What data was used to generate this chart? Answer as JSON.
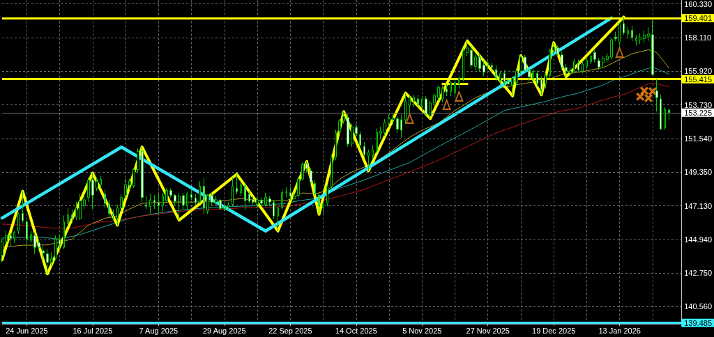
{
  "chart_data": {
    "type": "candlestick",
    "color": "#00c800",
    "categories": [
      null,
      null,
      null,
      null,
      null,
      null,
      "24 Jun 2025",
      null,
      null,
      null,
      null,
      null,
      null,
      null,
      null,
      null,
      null,
      null,
      null,
      null,
      null,
      null,
      "16 Jul 2025",
      null,
      null,
      null,
      null,
      null,
      null,
      null,
      null,
      null,
      null,
      null,
      null,
      null,
      null,
      null,
      "7 Aug 2025",
      null,
      null,
      null,
      null,
      null,
      null,
      null,
      null,
      null,
      null,
      null,
      null,
      null,
      null,
      null,
      "29 Aug 2025",
      null,
      null,
      null,
      null,
      null,
      null,
      null,
      null,
      null,
      null,
      null,
      null,
      null,
      null,
      null,
      "22 Sep 2025",
      null,
      null,
      null,
      null,
      null,
      null,
      null,
      null,
      null,
      null,
      null,
      null,
      null,
      null,
      null,
      "14 Oct 2025",
      null,
      null,
      null,
      null,
      null,
      null,
      null,
      null,
      null,
      null,
      null,
      null,
      null,
      null,
      null,
      "5 Nov 2025",
      null,
      null,
      null,
      null,
      null,
      null,
      null,
      null,
      null,
      null,
      null,
      null,
      null,
      null,
      null,
      "27 Nov 2025",
      null,
      null,
      null,
      null,
      null,
      null,
      null,
      null,
      null,
      null,
      null,
      null,
      null,
      null,
      null,
      "19 Dec 2025",
      null,
      null,
      null,
      null,
      null,
      null,
      null,
      null,
      null,
      null,
      null,
      null,
      null,
      null,
      null,
      "13 Jan 2026",
      null,
      null,
      null,
      null,
      null,
      null,
      null,
      null,
      null,
      null,
      null,
      null
    ],
    "ohlc": [
      [
        143.9,
        145.0,
        143.45,
        144.8
      ],
      [
        144.8,
        145.5,
        144.6,
        145.2
      ],
      [
        145.2,
        145.4,
        144.5,
        145.0
      ],
      [
        145.0,
        145.5,
        144.7,
        145.4
      ],
      [
        145.5,
        146.7,
        145.3,
        146.6
      ],
      [
        146.65,
        148.09,
        146.0,
        146.17
      ],
      [
        146.09,
        146.2,
        144.5,
        144.96
      ],
      [
        144.88,
        145.5,
        144.7,
        145.26
      ],
      [
        145.18,
        145.4,
        144.0,
        144.42
      ],
      [
        144.72,
        144.9,
        144.2,
        144.42
      ],
      [
        144.2,
        144.5,
        143.6,
        144.05
      ],
      [
        144.0,
        144.3,
        142.69,
        143.44
      ],
      [
        143.44,
        144.1,
        143.2,
        143.67
      ],
      [
        143.74,
        145.2,
        143.6,
        144.96
      ],
      [
        144.9,
        145.3,
        144.3,
        144.6
      ],
      [
        144.42,
        146.5,
        144.3,
        146.09
      ],
      [
        146.0,
        147.0,
        145.8,
        146.55
      ],
      [
        146.55,
        146.9,
        146.0,
        146.32
      ],
      [
        146.4,
        147.4,
        146.2,
        147.0
      ],
      [
        146.3,
        147.9,
        146.2,
        147.45
      ],
      [
        147.15,
        147.8,
        146.9,
        147.53
      ],
      [
        147.68,
        149.0,
        147.4,
        148.82
      ],
      [
        148.82,
        149.27,
        146.93,
        147.83
      ],
      [
        148.29,
        149.0,
        148.1,
        148.74
      ],
      [
        148.5,
        149.1,
        148.3,
        148.86
      ],
      [
        147.9,
        148.2,
        147.0,
        147.3
      ],
      [
        147.23,
        147.5,
        146.4,
        146.62
      ],
      [
        146.62,
        146.9,
        146.2,
        146.47
      ],
      [
        146.32,
        147.2,
        145.87,
        147.0
      ],
      [
        147.0,
        147.9,
        146.8,
        147.68
      ],
      [
        147.83,
        148.9,
        147.6,
        148.52
      ],
      [
        148.5,
        148.9,
        148.2,
        148.74
      ],
      [
        148.44,
        149.6,
        148.3,
        149.5
      ],
      [
        149.5,
        150.9,
        149.3,
        150.7
      ],
      [
        150.71,
        150.98,
        147.4,
        147.68
      ],
      [
        147.2,
        147.8,
        146.9,
        147.1
      ],
      [
        147.08,
        147.91,
        146.62,
        147.53
      ],
      [
        147.5,
        147.83,
        146.93,
        147.35
      ],
      [
        147.35,
        147.91,
        146.7,
        147.15
      ],
      [
        147.15,
        147.99,
        146.77,
        147.76
      ],
      [
        147.46,
        148.3,
        147.38,
        148.14
      ],
      [
        148.14,
        148.29,
        147.68,
        147.83
      ],
      [
        147.83,
        147.91,
        147.2,
        147.43
      ],
      [
        147.4,
        147.99,
        146.2,
        147.76
      ],
      [
        147.8,
        147.99,
        146.93,
        147.2
      ],
      [
        147.15,
        148.06,
        146.85,
        147.91
      ],
      [
        147.88,
        148.2,
        147.5,
        147.68
      ],
      [
        147.64,
        147.91,
        147.2,
        147.35
      ],
      [
        147.38,
        148.74,
        147.3,
        148.41
      ],
      [
        148.41,
        148.97,
        146.62,
        147.0
      ],
      [
        146.8,
        147.9,
        146.6,
        147.83
      ],
      [
        147.83,
        148.0,
        147.2,
        147.38
      ],
      [
        147.38,
        147.76,
        147.15,
        147.53
      ],
      [
        147.5,
        147.6,
        146.85,
        146.96
      ],
      [
        147.05,
        147.3,
        146.8,
        146.96
      ],
      [
        147.05,
        147.38,
        146.85,
        147.2
      ],
      [
        147.23,
        148.97,
        147.1,
        148.41
      ],
      [
        148.29,
        149.2,
        147.9,
        148.06
      ],
      [
        147.99,
        148.74,
        147.8,
        148.52
      ],
      [
        148.44,
        148.52,
        146.85,
        147.46
      ],
      [
        147.9,
        148.1,
        147.3,
        147.43
      ],
      [
        147.53,
        147.76,
        147.2,
        147.38
      ],
      [
        147.23,
        147.68,
        147.0,
        147.53
      ],
      [
        147.5,
        147.68,
        147.1,
        147.3
      ],
      [
        147.23,
        147.99,
        147.1,
        147.68
      ],
      [
        147.6,
        147.76,
        147.1,
        147.38
      ],
      [
        147.38,
        147.53,
        146.3,
        146.47
      ],
      [
        146.47,
        147.1,
        145.49,
        147.0
      ],
      [
        147.0,
        148.2,
        146.9,
        148.02
      ],
      [
        148.0,
        148.35,
        147.7,
        148.05
      ],
      [
        148.0,
        148.35,
        147.5,
        147.76
      ],
      [
        147.6,
        148.0,
        147.4,
        147.76
      ],
      [
        147.83,
        149.05,
        147.68,
        148.89
      ],
      [
        148.89,
        149.96,
        148.8,
        149.83
      ],
      [
        149.9,
        150.03,
        149.3,
        149.57
      ],
      [
        149.42,
        149.6,
        148.5,
        148.67
      ],
      [
        148.6,
        148.8,
        147.8,
        147.91
      ],
      [
        147.83,
        148.0,
        146.58,
        147.15
      ],
      [
        147.0,
        147.4,
        146.6,
        147.26
      ],
      [
        147.3,
        148.5,
        147.1,
        148.4
      ],
      [
        148.4,
        150.5,
        148.2,
        150.3
      ],
      [
        150.3,
        152.1,
        150.1,
        151.9
      ],
      [
        152.0,
        152.8,
        151.8,
        152.68
      ],
      [
        152.68,
        153.29,
        152.5,
        152.98
      ],
      [
        152.9,
        153.1,
        151.0,
        151.17
      ],
      [
        151.2,
        152.5,
        151.0,
        152.3
      ],
      [
        152.26,
        152.5,
        151.6,
        151.85
      ],
      [
        151.8,
        152.0,
        150.9,
        151.09
      ],
      [
        151.02,
        151.3,
        150.3,
        150.48
      ],
      [
        150.4,
        150.8,
        149.42,
        150.63
      ],
      [
        150.4,
        151.1,
        150.2,
        150.78
      ],
      [
        150.74,
        152.2,
        150.6,
        151.92
      ],
      [
        151.85,
        152.3,
        151.5,
        152.0
      ],
      [
        151.92,
        152.8,
        151.7,
        152.6
      ],
      [
        152.53,
        153.1,
        152.3,
        152.83
      ],
      [
        152.76,
        153.2,
        152.4,
        152.86
      ],
      [
        152.83,
        153.0,
        151.9,
        152.15
      ],
      [
        152.76,
        153.1,
        151.6,
        152.07
      ],
      [
        152.76,
        154.5,
        152.5,
        153.97
      ],
      [
        153.7,
        154.3,
        153.2,
        154.2
      ],
      [
        153.97,
        154.4,
        153.6,
        154.23
      ],
      [
        154.12,
        154.4,
        153.5,
        153.74
      ],
      [
        153.59,
        154.3,
        153.3,
        154.12
      ],
      [
        154.12,
        154.3,
        153.0,
        153.13
      ],
      [
        153.0,
        154.0,
        152.83,
        153.85
      ],
      [
        153.85,
        154.5,
        153.6,
        154.35
      ],
      [
        154.2,
        155.0,
        154.0,
        154.88
      ],
      [
        154.12,
        155.0,
        153.9,
        154.8
      ],
      [
        154.77,
        155.1,
        154.3,
        154.57
      ],
      [
        154.6,
        155.3,
        154.3,
        155.18
      ],
      [
        154.5,
        155.3,
        154.2,
        155.18
      ],
      [
        155.1,
        155.6,
        154.8,
        155.48
      ],
      [
        155.48,
        157.4,
        155.3,
        157.23
      ],
      [
        157.15,
        157.91,
        156.9,
        157.45
      ],
      [
        157.3,
        157.6,
        156.1,
        156.32
      ],
      [
        156.24,
        157.0,
        156.0,
        156.85
      ],
      [
        156.85,
        157.1,
        155.9,
        156.09
      ],
      [
        156.32,
        156.6,
        155.6,
        155.86
      ],
      [
        156.47,
        156.7,
        156.0,
        156.32
      ],
      [
        156.32,
        156.5,
        155.9,
        156.17
      ],
      [
        156.04,
        156.3,
        155.3,
        155.48
      ],
      [
        155.33,
        155.9,
        155.0,
        155.79
      ],
      [
        155.79,
        156.0,
        155.0,
        155.26
      ],
      [
        155.26,
        155.5,
        154.8,
        155.1
      ],
      [
        155.03,
        155.6,
        154.32,
        155.48
      ],
      [
        155.18,
        156.1,
        155.0,
        155.94
      ],
      [
        155.94,
        156.95,
        155.7,
        156.85
      ],
      [
        156.85,
        157.0,
        155.9,
        156.01
      ],
      [
        155.94,
        156.1,
        155.3,
        155.56
      ],
      [
        155.48,
        156.1,
        155.2,
        155.94
      ],
      [
        155.79,
        156.0,
        154.9,
        155.1
      ],
      [
        155.41,
        155.6,
        154.38,
        154.73
      ],
      [
        155.1,
        155.8,
        154.8,
        155.64
      ],
      [
        155.64,
        157.4,
        155.5,
        157.3
      ],
      [
        157.3,
        157.8,
        157.0,
        157.5
      ],
      [
        157.45,
        157.6,
        156.9,
        157.07
      ],
      [
        157.0,
        157.2,
        156.0,
        156.17
      ],
      [
        156.17,
        156.4,
        155.56,
        155.94
      ],
      [
        155.8,
        156.2,
        155.6,
        155.94
      ],
      [
        155.94,
        156.7,
        155.8,
        156.59
      ],
      [
        156.47,
        156.7,
        155.9,
        156.01
      ],
      [
        155.94,
        156.6,
        155.8,
        156.39
      ],
      [
        156.24,
        156.8,
        156.1,
        156.65
      ],
      [
        156.55,
        157.1,
        156.4,
        156.92
      ],
      [
        157.15,
        157.3,
        156.5,
        156.7
      ],
      [
        156.62,
        156.8,
        156.0,
        156.2
      ],
      [
        156.5,
        156.9,
        156.2,
        156.77
      ],
      [
        156.7,
        157.1,
        156.5,
        156.92
      ],
      [
        156.85,
        158.1,
        156.7,
        157.98
      ],
      [
        158.16,
        158.5,
        157.9,
        158.06
      ],
      [
        157.83,
        159.1,
        157.6,
        159.04
      ],
      [
        159.04,
        159.47,
        158.3,
        158.44
      ],
      [
        158.36,
        158.8,
        158.1,
        158.59
      ],
      [
        158.59,
        158.9,
        157.9,
        158.13
      ],
      [
        157.91,
        158.3,
        157.6,
        158.06
      ],
      [
        157.98,
        158.4,
        157.7,
        158.13
      ],
      [
        158.06,
        158.6,
        157.8,
        158.29
      ],
      [
        158.21,
        158.8,
        157.9,
        158.36
      ],
      [
        158.31,
        159.27,
        155.64,
        155.71
      ],
      [
        154.65,
        155.41,
        153.29,
        154.2
      ],
      [
        154.12,
        154.4,
        152.1,
        152.15
      ],
      [
        152.23,
        153.6,
        152.1,
        153.44
      ],
      [
        153.39,
        153.51,
        152.76,
        153.225
      ]
    ],
    "series": [
      {
        "type": "line",
        "color": "#b4a41e",
        "values": [
          144.43,
          null,
          null,
          null,
          null,
          144.56,
          null,
          null,
          null,
          null,
          null,
          144.58,
          null,
          null,
          null,
          null,
          null,
          144.96,
          null,
          null,
          null,
          145.87,
          null,
          null,
          null,
          146.32,
          null,
          null,
          146.47,
          null,
          null,
          146.93,
          null,
          null,
          147.3,
          null,
          null,
          null,
          null,
          null,
          null,
          147.38,
          null,
          null,
          null,
          null,
          147.38,
          null,
          null,
          null,
          null,
          null,
          147.41,
          null,
          null,
          null,
          null,
          null,
          147.61,
          null,
          null,
          null,
          null,
          147.46,
          null,
          null,
          null,
          null,
          null,
          147.46,
          null,
          null,
          null,
          147.98,
          null,
          null,
          147.91,
          null,
          null,
          148.14,
          null,
          null,
          148.89,
          null,
          null,
          149.35,
          null,
          null,
          null,
          null,
          149.88,
          null,
          null,
          150.41,
          null,
          null,
          151.01,
          null,
          null,
          151.62,
          null,
          null,
          152.07,
          null,
          null,
          null,
          152.53,
          null,
          null,
          null,
          153.36,
          null,
          null,
          null,
          null,
          154.2,
          null,
          null,
          null,
          null,
          154.77,
          null,
          null,
          null,
          null,
          null,
          155.1,
          null,
          null,
          null,
          null,
          null,
          155.33,
          null,
          null,
          null,
          155.71,
          null,
          null,
          null,
          155.86,
          null,
          null,
          null,
          null,
          null,
          156.16,
          null,
          null,
          null,
          156.69,
          null,
          null,
          157.07,
          null,
          null,
          null,
          157.33,
          null,
          157.15,
          null,
          null,
          156.14
        ]
      },
      {
        "type": "line",
        "color": "#1fa3a3",
        "values": [
          145.03,
          null,
          null,
          null,
          null,
          null,
          null,
          null,
          145.11,
          null,
          null,
          null,
          null,
          null,
          144.96,
          null,
          null,
          null,
          null,
          145.26,
          null,
          null,
          null,
          null,
          null,
          145.79,
          null,
          null,
          null,
          null,
          null,
          146.32,
          null,
          null,
          null,
          null,
          null,
          146.62,
          null,
          null,
          null,
          146.78,
          null,
          null,
          null,
          null,
          146.93,
          null,
          null,
          null,
          null,
          null,
          147.05,
          null,
          null,
          null,
          null,
          null,
          147.11,
          null,
          null,
          null,
          null,
          147.15,
          null,
          null,
          null,
          null,
          null,
          147.3,
          null,
          null,
          147.46,
          null,
          null,
          null,
          147.61,
          null,
          null,
          null,
          null,
          null,
          148.29,
          null,
          null,
          null,
          null,
          null,
          148.82,
          null,
          null,
          null,
          null,
          149.35,
          null,
          null,
          null,
          null,
          null,
          149.96,
          null,
          null,
          null,
          null,
          null,
          null,
          151.01,
          null,
          null,
          null,
          null,
          null,
          null,
          null,
          null,
          152.29,
          null,
          null,
          null,
          null,
          null,
          null,
          153.36,
          null,
          null,
          null,
          null,
          null,
          null,
          null,
          null,
          null,
          153.95,
          null,
          null,
          null,
          154.25,
          null,
          null,
          null,
          154.5,
          null,
          null,
          null,
          null,
          null,
          155.03,
          null,
          null,
          155.41,
          null,
          null,
          155.65,
          null,
          155.86,
          null,
          null,
          null,
          156.2,
          null,
          null,
          null,
          155.74
        ]
      },
      {
        "type": "line",
        "color": "#b31717",
        "values": [
          145.94,
          null,
          null,
          null,
          null,
          145.87,
          null,
          null,
          null,
          null,
          null,
          145.71,
          null,
          null,
          null,
          null,
          145.64,
          null,
          null,
          145.79,
          null,
          null,
          null,
          null,
          146.09,
          null,
          null,
          null,
          146.17,
          null,
          null,
          null,
          null,
          null,
          146.47,
          null,
          null,
          null,
          null,
          null,
          null,
          146.7,
          null,
          null,
          null,
          null,
          146.85,
          null,
          null,
          null,
          null,
          null,
          146.89,
          null,
          null,
          null,
          null,
          null,
          147.0,
          null,
          null,
          null,
          null,
          147.0,
          null,
          null,
          null,
          null,
          null,
          147.11,
          null,
          null,
          147.23,
          null,
          null,
          null,
          147.38,
          null,
          null,
          null,
          null,
          null,
          147.76,
          null,
          null,
          null,
          null,
          null,
          148.21,
          null,
          null,
          null,
          null,
          148.74,
          null,
          null,
          null,
          null,
          null,
          149.35,
          null,
          null,
          null,
          null,
          null,
          null,
          150.11,
          null,
          null,
          null,
          null,
          null,
          null,
          null,
          null,
          null,
          null,
          null,
          null,
          null,
          151.9,
          null,
          null,
          null,
          null,
          null,
          null,
          null,
          null,
          null,
          null,
          null,
          null,
          null,
          null,
          153.29,
          null,
          null,
          null,
          null,
          153.52,
          null,
          null,
          null,
          null,
          null,
          154.05,
          null,
          null,
          null,
          null,
          null,
          154.5,
          null,
          154.76,
          null,
          null,
          155.1,
          null,
          155.1,
          null,
          null,
          154.91
        ]
      },
      {
        "type": "line",
        "color": "#ffff00",
        "values": [
          143.61,
          null,
          null,
          null,
          null,
          148.09,
          null,
          null,
          null,
          null,
          null,
          142.69,
          null,
          null,
          null,
          null,
          null,
          null,
          null,
          null,
          null,
          null,
          149.27,
          null,
          null,
          null,
          null,
          null,
          145.87,
          null,
          null,
          null,
          null,
          null,
          150.98,
          null,
          null,
          null,
          null,
          null,
          null,
          null,
          null,
          146.2,
          null,
          null,
          null,
          null,
          null,
          null,
          null,
          null,
          null,
          null,
          null,
          null,
          null,
          149.2,
          null,
          null,
          null,
          null,
          null,
          null,
          null,
          null,
          null,
          145.49,
          null,
          null,
          null,
          null,
          null,
          null,
          150.03,
          null,
          null,
          146.58,
          null,
          null,
          null,
          null,
          null,
          153.29,
          null,
          null,
          null,
          null,
          null,
          149.42,
          null,
          null,
          null,
          null,
          null,
          null,
          null,
          null,
          154.5,
          null,
          null,
          null,
          null,
          null,
          152.83,
          null,
          null,
          null,
          null,
          null,
          null,
          null,
          null,
          157.91,
          null,
          null,
          null,
          null,
          null,
          null,
          null,
          null,
          null,
          null,
          154.32,
          null,
          156.95,
          null,
          null,
          null,
          null,
          154.38,
          null,
          null,
          157.8,
          null,
          null,
          155.56,
          null,
          null,
          null,
          null,
          null,
          null,
          null,
          null,
          null,
          null,
          null,
          null,
          null,
          159.47,
          null,
          null,
          null,
          null,
          null,
          null,
          null,
          null,
          null,
          null,
          null
        ]
      },
      {
        "type": "line",
        "color": "#33e6f5",
        "values": [
          146.34,
          null,
          null,
          null,
          null,
          null,
          null,
          null,
          null,
          null,
          null,
          null,
          null,
          null,
          null,
          null,
          null,
          null,
          null,
          null,
          null,
          null,
          null,
          null,
          null,
          null,
          null,
          null,
          null,
          150.97,
          null,
          null,
          null,
          null,
          null,
          null,
          null,
          null,
          null,
          null,
          null,
          null,
          null,
          null,
          null,
          null,
          null,
          null,
          null,
          null,
          null,
          null,
          null,
          null,
          null,
          null,
          null,
          null,
          null,
          null,
          null,
          null,
          null,
          null,
          145.49,
          null,
          null,
          null,
          null,
          null,
          null,
          null,
          null,
          null,
          null,
          null,
          null,
          null,
          null,
          null,
          null,
          null,
          null,
          null,
          null,
          null,
          null,
          null,
          null,
          null,
          null,
          null,
          null,
          null,
          null,
          null,
          null,
          null,
          null,
          null,
          null,
          null,
          null,
          null,
          null,
          null,
          null,
          null,
          null,
          null,
          null,
          null,
          null,
          null,
          null,
          null,
          null,
          null,
          null,
          null,
          null,
          null,
          null,
          null,
          null,
          null,
          null,
          null,
          null,
          null,
          null,
          null,
          null,
          null,
          null,
          null,
          null,
          null,
          null,
          null,
          null,
          null,
          null,
          null,
          null,
          null,
          null,
          null,
          159.4,
          null,
          null,
          null,
          null,
          null,
          null,
          null,
          null,
          null,
          null,
          null,
          null,
          null,
          null
        ]
      },
      {
        "type": "line",
        "color": "#ffff00",
        "values": [
          null,
          null,
          null,
          null,
          null,
          null,
          null,
          null,
          null,
          null,
          null,
          null,
          null,
          null,
          null,
          null,
          null,
          null,
          null,
          null,
          null,
          null,
          null,
          null,
          null,
          null,
          null,
          null,
          null,
          null,
          null,
          null,
          null,
          null,
          null,
          null,
          null,
          null,
          null,
          null,
          null,
          null,
          null,
          null,
          null,
          null,
          null,
          null,
          null,
          null,
          null,
          null,
          null,
          null,
          null,
          null,
          null,
          null,
          null,
          null,
          null,
          null,
          null,
          null,
          null,
          null,
          null,
          null,
          null,
          null,
          null,
          null,
          null,
          null,
          null,
          null,
          null,
          null,
          null,
          null,
          null,
          null,
          null,
          null,
          null,
          null,
          null,
          null,
          null,
          null,
          null,
          null,
          null,
          null,
          null,
          null,
          null,
          null,
          null,
          null,
          null,
          null,
          null,
          null,
          null,
          null,
          null,
          155.1,
          null,
          null,
          null,
          null,
          null,
          155.1,
          null,
          null,
          null,
          null,
          null,
          null,
          null,
          null,
          null,
          null,
          null,
          null,
          null,
          null,
          null,
          null,
          null,
          null,
          null,
          null,
          null,
          null,
          null,
          null,
          null,
          null,
          null,
          null,
          null,
          null,
          null,
          null,
          null,
          null,
          null,
          null,
          null,
          null,
          null,
          null,
          null,
          null,
          null,
          null,
          null,
          null,
          null,
          null,
          null
        ]
      },
      {
        "type": "scatter",
        "color": "#e8821e",
        "marker": "triangle",
        "values": [
          null,
          null,
          null,
          null,
          null,
          null,
          null,
          null,
          null,
          null,
          null,
          null,
          null,
          null,
          null,
          null,
          null,
          null,
          null,
          null,
          null,
          null,
          null,
          null,
          null,
          null,
          null,
          null,
          null,
          null,
          null,
          null,
          null,
          null,
          null,
          null,
          null,
          null,
          null,
          null,
          null,
          null,
          null,
          null,
          null,
          null,
          null,
          null,
          null,
          null,
          null,
          null,
          null,
          null,
          null,
          null,
          null,
          null,
          null,
          null,
          null,
          null,
          null,
          null,
          null,
          null,
          null,
          null,
          null,
          null,
          null,
          null,
          null,
          null,
          null,
          null,
          null,
          null,
          null,
          null,
          null,
          null,
          null,
          null,
          null,
          null,
          null,
          null,
          null,
          null,
          null,
          null,
          null,
          null,
          null,
          null,
          null,
          null,
          null,
          152.83,
          null,
          null,
          null,
          null,
          null,
          null,
          null,
          null,
          153.74,
          null,
          null,
          154.29,
          null,
          null,
          null,
          null,
          null,
          null,
          null,
          null,
          null,
          null,
          null,
          null,
          null,
          null,
          null,
          null,
          null,
          null,
          null,
          null,
          null,
          null,
          null,
          null,
          null,
          null,
          null,
          null,
          null,
          null,
          null,
          null,
          null,
          null,
          null,
          null,
          null,
          null,
          157.15,
          null,
          null,
          null,
          null,
          null,
          null,
          null,
          null,
          null,
          null,
          null,
          null
        ]
      },
      {
        "type": "scatter",
        "color": "#ff8c1a",
        "marker": "cross",
        "values": [
          null,
          null,
          null,
          null,
          null,
          null,
          null,
          null,
          null,
          null,
          null,
          null,
          null,
          null,
          null,
          null,
          null,
          null,
          null,
          null,
          null,
          null,
          null,
          null,
          null,
          null,
          null,
          null,
          null,
          null,
          null,
          null,
          null,
          null,
          null,
          null,
          null,
          null,
          null,
          null,
          null,
          null,
          null,
          null,
          null,
          null,
          null,
          null,
          null,
          null,
          null,
          null,
          null,
          null,
          null,
          null,
          null,
          null,
          null,
          null,
          null,
          null,
          null,
          null,
          null,
          null,
          null,
          null,
          null,
          null,
          null,
          null,
          null,
          null,
          null,
          null,
          null,
          null,
          null,
          null,
          null,
          null,
          null,
          null,
          null,
          null,
          null,
          null,
          null,
          null,
          null,
          null,
          null,
          null,
          null,
          null,
          null,
          null,
          null,
          null,
          null,
          null,
          null,
          null,
          null,
          null,
          null,
          null,
          null,
          null,
          null,
          null,
          null,
          null,
          null,
          null,
          null,
          null,
          null,
          null,
          null,
          null,
          null,
          null,
          null,
          null,
          null,
          null,
          null,
          null,
          null,
          null,
          null,
          null,
          null,
          null,
          null,
          null,
          null,
          null,
          null,
          null,
          null,
          null,
          null,
          null,
          null,
          null,
          null,
          null,
          null,
          null,
          null,
          null,
          null,
          154.27,
          154.65,
          154.17,
          154.62,
          null,
          null,
          null,
          null
        ]
      }
    ],
    "ref_lines": [
      {
        "axis": "y",
        "value": 159.401,
        "label": "159.401",
        "color": "#ffff00"
      },
      {
        "axis": "y",
        "value": 155.415,
        "label": "155.415",
        "color": "#ffff00"
      },
      {
        "axis": "y",
        "value": 153.225,
        "label": "153.225",
        "color": "#707070"
      },
      {
        "axis": "y",
        "value": 139.485,
        "label": "139.485",
        "color": "#33e6f5"
      }
    ],
    "ylim": [
      139.43,
      160.56
    ],
    "yticks": [
      {
        "value": 140.56,
        "label": "140.560"
      },
      {
        "value": 142.75,
        "label": "142.750"
      },
      {
        "value": 144.94,
        "label": "144.940"
      },
      {
        "value": 147.13,
        "label": "147.130"
      },
      {
        "value": 149.35,
        "label": "149.350"
      },
      {
        "value": 151.54,
        "label": "151.540"
      },
      {
        "value": 153.73,
        "label": "153.730"
      },
      {
        "value": 155.92,
        "label": "155.920"
      },
      {
        "value": 158.11,
        "label": "158.110"
      },
      {
        "value": 160.33,
        "label": "160.330"
      }
    ],
    "grid": true
  }
}
